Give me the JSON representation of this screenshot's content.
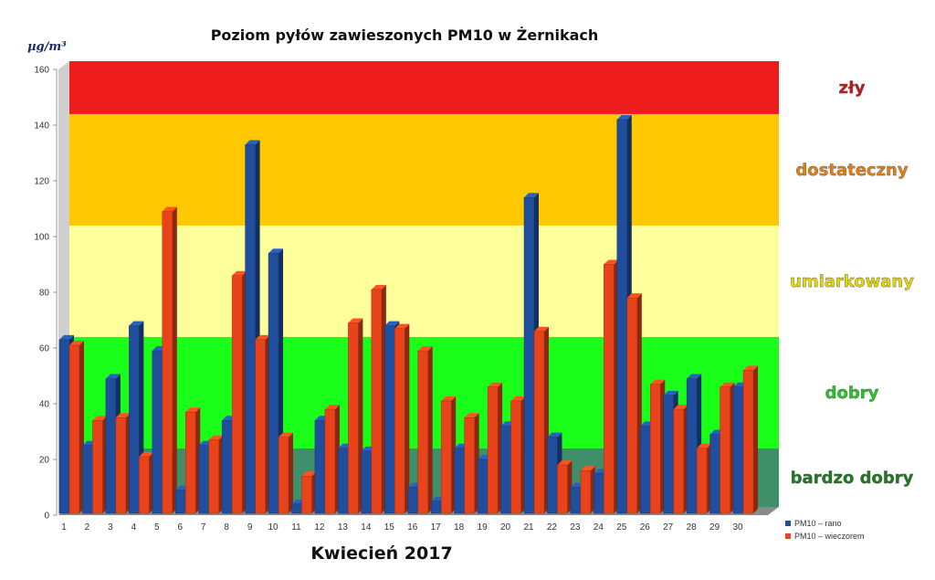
{
  "chart_data": {
    "type": "bar",
    "title": "Poziom pyłów zawieszonych PM10 w Żernikach",
    "subtitle": "Kwiecień 2017",
    "ylabel_unit": "µg/m³",
    "ylim": [
      0,
      160
    ],
    "yticks": [
      0,
      20,
      40,
      60,
      80,
      100,
      120,
      140,
      160
    ],
    "categories": [
      "1",
      "2",
      "3",
      "4",
      "5",
      "6",
      "7",
      "8",
      "9",
      "10",
      "11",
      "12",
      "13",
      "14",
      "15",
      "16",
      "17",
      "18",
      "19",
      "20",
      "21",
      "22",
      "23",
      "24",
      "25",
      "26",
      "27",
      "28",
      "29",
      "30"
    ],
    "series": [
      {
        "name": "PM10 – rano",
        "color": "#1f4e9c",
        "values": [
          63,
          25,
          49,
          68,
          59,
          9,
          25,
          34,
          133,
          94,
          4,
          34,
          24,
          23,
          68,
          10,
          5,
          24,
          20,
          32,
          114,
          28,
          10,
          15,
          142,
          32,
          43,
          49,
          29,
          46
        ]
      },
      {
        "name": "PM10 – wieczorem",
        "color": "#e8431a",
        "values": [
          61,
          34,
          35,
          21,
          109,
          37,
          27,
          86,
          63,
          28,
          14,
          38,
          69,
          81,
          67,
          59,
          41,
          35,
          46,
          41,
          66,
          18,
          16,
          90,
          78,
          47,
          38,
          24,
          46,
          52
        ]
      }
    ],
    "bands": [
      {
        "label": "zły",
        "from": 141,
        "to": 160,
        "color": "#ee1c1c",
        "text_color": "#c4161c"
      },
      {
        "label": "dostateczny",
        "from": 101,
        "to": 141,
        "color": "#ffc800",
        "text_color": "#e87e12"
      },
      {
        "label": "umiarkowany",
        "from": 61,
        "to": 101,
        "color": "#ffff9c",
        "text_color": "#e8d800"
      },
      {
        "label": "dobry",
        "from": 21,
        "to": 61,
        "color": "#1aff1a",
        "text_color": "#28c428"
      },
      {
        "label": "bardzo dobry",
        "from": 0,
        "to": 21,
        "color": "#3e8f6a",
        "text_color": "#1e7a1e"
      }
    ],
    "legend_position": "bottom-right",
    "grid": false
  }
}
